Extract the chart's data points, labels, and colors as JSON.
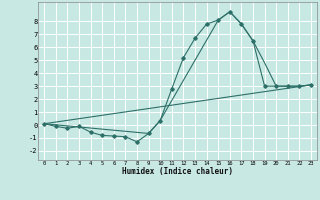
{
  "xlabel": "Humidex (Indice chaleur)",
  "background_color": "#c8e8e4",
  "grid_color": "#ffffff",
  "line_color": "#2d7068",
  "xlim": [
    -0.5,
    23.5
  ],
  "ylim": [
    -2.7,
    9.5
  ],
  "xticks": [
    0,
    1,
    2,
    3,
    4,
    5,
    6,
    7,
    8,
    9,
    10,
    11,
    12,
    13,
    14,
    15,
    16,
    17,
    18,
    19,
    20,
    21,
    22,
    23
  ],
  "yticks": [
    -2,
    -1,
    0,
    1,
    2,
    3,
    4,
    5,
    6,
    7,
    8
  ],
  "curve1_x": [
    0,
    1,
    2,
    3,
    4,
    5,
    6,
    7,
    8,
    9,
    10,
    11,
    12,
    13,
    14,
    15,
    16,
    17,
    18,
    19,
    20,
    21,
    22,
    23
  ],
  "curve1_y": [
    0.1,
    -0.1,
    -0.25,
    -0.1,
    -0.55,
    -0.8,
    -0.85,
    -0.9,
    -1.3,
    -0.65,
    0.35,
    2.8,
    5.2,
    6.7,
    7.8,
    8.1,
    8.75,
    7.8,
    6.5,
    3.0,
    3.0,
    3.0,
    3.0,
    3.1
  ],
  "curve2_x": [
    0,
    9,
    10,
    15,
    16,
    17,
    18,
    19,
    20,
    21,
    22,
    23
  ],
  "curve2_y": [
    0.1,
    -0.65,
    0.35,
    8.1,
    8.75,
    7.8,
    6.5,
    4.8,
    3.0,
    3.0,
    3.0,
    3.1
  ],
  "curve3_x": [
    0,
    23
  ],
  "curve3_y": [
    0.1,
    3.1
  ]
}
